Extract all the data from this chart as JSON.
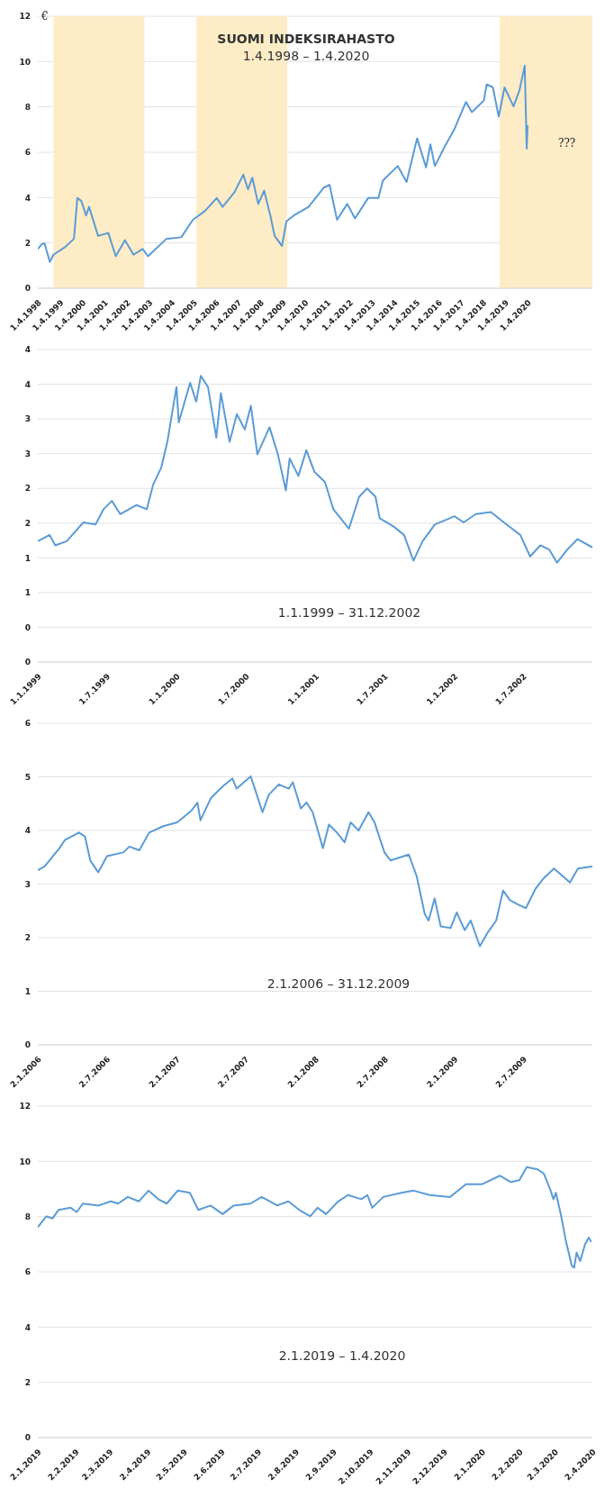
{
  "chart_data": [
    {
      "type": "line",
      "title": "SUOMI INDEKSIRAHASTO",
      "subtitle": "1.4.1998 – 1.4.2020",
      "ylabel": "€",
      "color": "#5b9bd5",
      "x": [
        "1998-04-01",
        "1998-06-01",
        "1998-07-20",
        "1998-10-15",
        "1998-12-15",
        "1999-06-15",
        "1999-11-15",
        "2000-01-10",
        "2000-03-15",
        "2000-06-01",
        "2000-07-20",
        "2000-12-15",
        "2001-06-01",
        "2001-10-01",
        "2002-03-01",
        "2002-07-20",
        "2002-12-15",
        "2003-03-15",
        "2004-01-10",
        "2004-09-10",
        "2005-03-20",
        "2005-10-01",
        "2006-04-15",
        "2006-07-20",
        "2007-02-01",
        "2007-06-25",
        "2007-09-10",
        "2007-11-20",
        "2008-02-25",
        "2008-06-01",
        "2008-09-10",
        "2008-11-20",
        "2009-03-20",
        "2009-06-01",
        "2009-10-01",
        "2010-06-01",
        "2011-02-01",
        "2011-05-10",
        "2011-09-10",
        "2012-02-25",
        "2012-07-01",
        "2013-02-01",
        "2013-07-20",
        "2013-10-01",
        "2014-06-01",
        "2014-10-25",
        "2015-04-15",
        "2015-09-10",
        "2015-11-20",
        "2016-02-01",
        "2016-07-20",
        "2016-12-15",
        "2017-06-25",
        "2017-10-01",
        "2018-04-15",
        "2018-06-01",
        "2018-09-10",
        "2018-12-15",
        "2019-03-20",
        "2019-08-15",
        "2019-11-20",
        "2020-02-15",
        "2020-03-18",
        "2020-04-01"
      ],
      "values": [
        1.73,
        1.93,
        1.99,
        1.16,
        1.48,
        1.8,
        2.18,
        3.98,
        3.85,
        3.21,
        3.59,
        2.31,
        2.44,
        1.41,
        2.12,
        1.48,
        1.73,
        1.41,
        2.18,
        2.25,
        3.02,
        3.4,
        3.98,
        3.59,
        4.24,
        5.01,
        4.36,
        4.88,
        3.72,
        4.3,
        3.21,
        2.31,
        1.86,
        2.95,
        3.21,
        3.59,
        4.43,
        4.56,
        3.02,
        3.72,
        3.08,
        3.98,
        3.98,
        4.75,
        5.39,
        4.69,
        6.61,
        5.33,
        6.35,
        5.39,
        6.29,
        7.0,
        8.22,
        7.77,
        8.28,
        8.99,
        8.86,
        7.57,
        8.86,
        8.02,
        8.73,
        9.82,
        6.16,
        7.19
      ],
      "xlim": [
        "1998-04-01",
        "2023-03-01"
      ],
      "xticks": [
        {
          "value": "1998-04-01",
          "label": "1.4.1998"
        },
        {
          "value": "1999-04-01",
          "label": "1.4.1999"
        },
        {
          "value": "2000-04-01",
          "label": "1.4.2000"
        },
        {
          "value": "2001-04-01",
          "label": "1.4.2001"
        },
        {
          "value": "2002-04-01",
          "label": "1.4.2002"
        },
        {
          "value": "2003-04-01",
          "label": "1.4.2003"
        },
        {
          "value": "2004-04-01",
          "label": "1.4.2004"
        },
        {
          "value": "2005-04-01",
          "label": "1.4.2005"
        },
        {
          "value": "2006-04-01",
          "label": "1.4.2006"
        },
        {
          "value": "2007-04-01",
          "label": "1.4.2007"
        },
        {
          "value": "2008-04-01",
          "label": "1.4.2008"
        },
        {
          "value": "2009-04-01",
          "label": "1.4.2009"
        },
        {
          "value": "2010-04-01",
          "label": "1.4.2010"
        },
        {
          "value": "2011-04-01",
          "label": "1.4.2011"
        },
        {
          "value": "2012-04-01",
          "label": "1.4.2012"
        },
        {
          "value": "2013-04-01",
          "label": "1.4.2013"
        },
        {
          "value": "2014-04-01",
          "label": "1.4.2014"
        },
        {
          "value": "2015-04-01",
          "label": "1.4.2015"
        },
        {
          "value": "2016-04-01",
          "label": "1.4.2016"
        },
        {
          "value": "2017-04-01",
          "label": "1.4.2017"
        },
        {
          "value": "2018-04-01",
          "label": "1.4.2018"
        },
        {
          "value": "2019-04-01",
          "label": "1.4.2019"
        },
        {
          "value": "2020-04-01",
          "label": "1.4.2020"
        }
      ],
      "ylim": [
        0,
        12
      ],
      "yticks": [
        0,
        2,
        4,
        6,
        8,
        10,
        12
      ],
      "grid": "y",
      "bands": [
        {
          "axis": "x",
          "from": "1998-12-15",
          "to": "2003-01-15",
          "color": "#fdecc6"
        },
        {
          "axis": "x",
          "from": "2005-05-15",
          "to": "2009-06-15",
          "color": "#fdecc6"
        },
        {
          "axis": "x",
          "from": "2019-01-01",
          "to": "2023-03-01",
          "color": "#fdecc6"
        }
      ],
      "annotations": [
        "???"
      ]
    },
    {
      "type": "line",
      "title": "1.1.1999 – 31.12.2002",
      "color": "#5b9bd5",
      "x": [
        "1999-01-01",
        "1999-02-01",
        "1999-02-16",
        "1999-03-18",
        "1999-05-01",
        "1999-06-02",
        "1999-06-23",
        "1999-07-15",
        "1999-08-06",
        "1999-09-18",
        "1999-10-15",
        "1999-11-01",
        "1999-11-22",
        "1999-12-08",
        "2000-01-01",
        "2000-01-07",
        "2000-02-06",
        "2000-02-22",
        "2000-03-05",
        "2000-03-24",
        "2000-04-15",
        "2000-04-27",
        "2000-05-20",
        "2000-06-08",
        "2000-06-29",
        "2000-07-15",
        "2000-08-01",
        "2000-09-02",
        "2000-09-24",
        "2000-10-15",
        "2000-10-25",
        "2000-11-17",
        "2000-12-08",
        "2000-12-29",
        "2001-01-26",
        "2001-02-17",
        "2001-03-30",
        "2001-04-26",
        "2001-05-17",
        "2001-06-08",
        "2001-06-19",
        "2001-07-26",
        "2001-08-22",
        "2001-09-16",
        "2001-10-10",
        "2001-11-11",
        "2002-01-02",
        "2002-01-26",
        "2002-02-27",
        "2002-04-08",
        "2002-05-12",
        "2002-06-24",
        "2002-07-20",
        "2002-08-16",
        "2002-09-08",
        "2002-09-29",
        "2002-10-26",
        "2002-11-22",
        "2002-12-31"
      ],
      "values": [
        1.74,
        1.83,
        1.68,
        1.74,
        2.01,
        1.98,
        2.2,
        2.32,
        2.13,
        2.26,
        2.2,
        2.56,
        2.8,
        3.17,
        3.96,
        3.45,
        4.02,
        3.75,
        4.12,
        3.96,
        3.23,
        3.87,
        3.17,
        3.57,
        3.35,
        3.69,
        2.99,
        3.38,
        2.99,
        2.47,
        2.93,
        2.68,
        3.05,
        2.74,
        2.59,
        2.2,
        1.92,
        2.38,
        2.5,
        2.38,
        2.07,
        1.95,
        1.83,
        1.46,
        1.74,
        1.98,
        2.1,
        2.01,
        2.13,
        2.16,
        2.01,
        1.83,
        1.52,
        1.68,
        1.62,
        1.43,
        1.62,
        1.77,
        1.65
      ],
      "xlim": [
        "1999-01-01",
        "2002-12-31"
      ],
      "xticks": [
        {
          "value": "1999-01-01",
          "label": "1.1.1999"
        },
        {
          "value": "1999-07-01",
          "label": "1.7.1999"
        },
        {
          "value": "2000-01-01",
          "label": "1.1.2000"
        },
        {
          "value": "2000-07-01",
          "label": "1.7.2000"
        },
        {
          "value": "2001-01-01",
          "label": "1.1.2001"
        },
        {
          "value": "2001-07-01",
          "label": "1.7.2001"
        },
        {
          "value": "2002-01-01",
          "label": "1.1.2002"
        },
        {
          "value": "2002-07-01",
          "label": "1.7.2002"
        }
      ],
      "ylim": [
        0,
        4.5
      ],
      "yticks": [
        0,
        {
          "value": 0.5,
          "label": "0"
        },
        1,
        {
          "value": 1.5,
          "label": "1"
        },
        2,
        {
          "value": 2.5,
          "label": "2"
        },
        3,
        {
          "value": 3.5,
          "label": "3"
        },
        4,
        {
          "value": 4.5,
          "label": "4"
        }
      ],
      "grid": "y"
    },
    {
      "type": "line",
      "title": "2.1.2006 – 31.12.2009",
      "color": "#5b9bd5",
      "x": [
        "2006-01-02",
        "2006-01-20",
        "2006-02-28",
        "2006-03-14",
        "2006-04-20",
        "2006-05-06",
        "2006-05-20",
        "2006-06-10",
        "2006-07-03",
        "2006-08-15",
        "2006-08-31",
        "2006-09-26",
        "2006-10-22",
        "2006-11-28",
        "2007-01-04",
        "2007-02-10",
        "2007-02-26",
        "2007-03-06",
        "2007-04-02",
        "2007-05-03",
        "2007-05-29",
        "2007-06-09",
        "2007-07-16",
        "2007-08-01",
        "2007-08-16",
        "2007-09-02",
        "2007-09-28",
        "2007-10-24",
        "2007-11-04",
        "2007-11-25",
        "2007-12-10",
        "2007-12-26",
        "2008-01-22",
        "2008-02-07",
        "2008-02-28",
        "2008-03-19",
        "2008-04-04",
        "2008-04-25",
        "2008-05-21",
        "2008-06-06",
        "2008-07-02",
        "2008-07-18",
        "2008-09-04",
        "2008-09-25",
        "2008-10-16",
        "2008-10-26",
        "2008-11-11",
        "2008-11-27",
        "2008-12-23",
        "2009-01-08",
        "2009-01-29",
        "2009-02-14",
        "2009-03-10",
        "2009-03-31",
        "2009-04-22",
        "2009-05-10",
        "2009-05-28",
        "2009-06-18",
        "2009-07-09",
        "2009-08-04",
        "2009-08-25",
        "2009-09-21",
        "2009-11-02",
        "2009-11-23",
        "2009-12-31"
      ],
      "values": [
        3.26,
        3.33,
        3.67,
        3.82,
        3.96,
        3.89,
        3.44,
        3.22,
        3.52,
        3.59,
        3.7,
        3.63,
        3.96,
        4.08,
        4.15,
        4.37,
        4.52,
        4.19,
        4.6,
        4.82,
        4.97,
        4.78,
        5.01,
        4.67,
        4.34,
        4.67,
        4.86,
        4.78,
        4.9,
        4.41,
        4.52,
        4.34,
        3.67,
        4.11,
        3.96,
        3.78,
        4.15,
        4.0,
        4.34,
        4.15,
        3.59,
        3.44,
        3.55,
        3.14,
        2.44,
        2.32,
        2.73,
        2.21,
        2.18,
        2.47,
        2.14,
        2.32,
        1.84,
        2.1,
        2.32,
        2.88,
        2.7,
        2.62,
        2.55,
        2.92,
        3.11,
        3.29,
        3.03,
        3.29,
        3.33
      ],
      "xlim": [
        "2006-01-02",
        "2009-12-31"
      ],
      "xticks": [
        {
          "value": "2006-01-02",
          "label": "2.1.2006"
        },
        {
          "value": "2006-07-02",
          "label": "2.7.2006"
        },
        {
          "value": "2007-01-02",
          "label": "2.1.2007"
        },
        {
          "value": "2007-07-02",
          "label": "2.7.2007"
        },
        {
          "value": "2008-01-02",
          "label": "2.1.2008"
        },
        {
          "value": "2008-07-02",
          "label": "2.7.2008"
        },
        {
          "value": "2009-01-02",
          "label": "2.1.2009"
        },
        {
          "value": "2009-07-02",
          "label": "2.7.2009"
        }
      ],
      "ylim": [
        0,
        6
      ],
      "yticks": [
        0,
        1,
        2,
        3,
        4,
        5,
        6
      ],
      "grid": "y"
    },
    {
      "type": "line",
      "title": "2.1.2019 – 1.4.2020",
      "color": "#5b9bd5",
      "x": [
        "2019-01-02",
        "2019-01-09",
        "2019-01-14",
        "2019-01-19",
        "2019-01-29",
        "2019-02-03",
        "2019-02-08",
        "2019-02-21",
        "2019-03-03",
        "2019-03-09",
        "2019-03-17",
        "2019-03-26",
        "2019-04-03",
        "2019-04-11",
        "2019-04-18",
        "2019-04-27",
        "2019-05-07",
        "2019-05-14",
        "2019-05-24",
        "2019-06-03",
        "2019-06-12",
        "2019-06-26",
        "2019-07-05",
        "2019-07-18",
        "2019-07-27",
        "2019-08-05",
        "2019-08-14",
        "2019-08-20",
        "2019-08-27",
        "2019-09-06",
        "2019-09-14",
        "2019-09-25",
        "2019-09-30",
        "2019-10-04",
        "2019-10-13",
        "2019-10-28",
        "2019-11-07",
        "2019-11-20",
        "2019-12-07",
        "2019-12-20",
        "2020-01-02",
        "2020-01-17",
        "2020-01-26",
        "2020-02-02",
        "2020-02-08",
        "2020-02-17",
        "2020-02-22",
        "2020-02-27",
        "2020-03-01",
        "2020-03-03",
        "2020-03-07",
        "2020-03-11",
        "2020-03-16",
        "2020-03-18",
        "2020-03-20",
        "2020-03-23",
        "2020-03-27",
        "2020-03-30",
        "2020-04-01"
      ],
      "values": [
        7.62,
        8.01,
        7.93,
        8.24,
        8.32,
        8.16,
        8.47,
        8.4,
        8.55,
        8.47,
        8.71,
        8.55,
        8.94,
        8.63,
        8.47,
        8.94,
        8.86,
        8.24,
        8.4,
        8.09,
        8.4,
        8.47,
        8.71,
        8.4,
        8.55,
        8.24,
        8.01,
        8.32,
        8.09,
        8.55,
        8.78,
        8.63,
        8.78,
        8.32,
        8.71,
        8.86,
        8.94,
        8.78,
        8.71,
        9.17,
        9.17,
        9.48,
        9.25,
        9.32,
        9.79,
        9.71,
        9.56,
        9.02,
        8.63,
        8.86,
        8.09,
        7.16,
        6.23,
        6.15,
        6.7,
        6.39,
        7.0,
        7.24,
        7.08
      ],
      "xlim": [
        "2019-01-02",
        "2020-04-02"
      ],
      "xticks": [
        {
          "value": "2019-01-02",
          "label": "2.1.2019"
        },
        {
          "value": "2019-02-02",
          "label": "2.2.2019"
        },
        {
          "value": "2019-03-02",
          "label": "2.3.2019"
        },
        {
          "value": "2019-04-02",
          "label": "2.4.2019"
        },
        {
          "value": "2019-05-02",
          "label": "2.5.2019"
        },
        {
          "value": "2019-06-02",
          "label": "2.6.2019"
        },
        {
          "value": "2019-07-02",
          "label": "2.7.2019"
        },
        {
          "value": "2019-08-02",
          "label": "2.8.2019"
        },
        {
          "value": "2019-09-02",
          "label": "2.9.2019"
        },
        {
          "value": "2019-10-02",
          "label": "2.10.2019"
        },
        {
          "value": "2019-11-02",
          "label": "2.11.2019"
        },
        {
          "value": "2019-12-02",
          "label": "2.12.2019"
        },
        {
          "value": "2020-01-02",
          "label": "2.1.2020"
        },
        {
          "value": "2020-02-02",
          "label": "2.2.2020"
        },
        {
          "value": "2020-03-02",
          "label": "2.3.2020"
        },
        {
          "value": "2020-04-02",
          "label": "2.4.2020"
        }
      ],
      "ylim": [
        0,
        12
      ],
      "yticks": [
        0,
        2,
        4,
        6,
        8,
        10,
        12
      ],
      "grid": "y"
    }
  ]
}
